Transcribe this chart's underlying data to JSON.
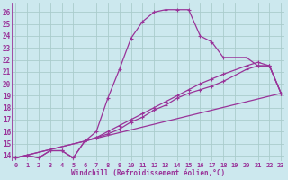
{
  "xlabel": "Windchill (Refroidissement éolien,°C)",
  "bg_color": "#cce8ee",
  "grid_color": "#aacccc",
  "line_color": "#993399",
  "ylim": [
    13.5,
    26.8
  ],
  "xlim": [
    -0.3,
    23.3
  ],
  "yticks": [
    14,
    15,
    16,
    17,
    18,
    19,
    20,
    21,
    22,
    23,
    24,
    25,
    26
  ],
  "xticks": [
    0,
    1,
    2,
    3,
    4,
    5,
    6,
    7,
    8,
    9,
    10,
    11,
    12,
    13,
    14,
    15,
    16,
    17,
    18,
    19,
    20,
    21,
    22,
    23
  ],
  "line1_x": [
    0,
    1,
    2,
    3,
    4,
    5,
    6,
    7,
    8,
    9,
    10,
    11,
    12,
    13,
    14,
    15,
    16,
    17,
    18,
    20,
    21,
    22,
    23
  ],
  "line1_y": [
    13.8,
    14.0,
    13.8,
    14.4,
    14.4,
    13.8,
    15.2,
    16.0,
    18.8,
    21.2,
    23.8,
    25.2,
    26.0,
    26.2,
    26.2,
    26.2,
    24.0,
    23.5,
    22.2,
    22.2,
    21.5,
    21.5,
    19.2
  ],
  "line2_x": [
    0,
    1,
    2,
    3,
    4,
    5,
    6,
    7,
    8,
    9,
    10,
    11,
    12,
    13,
    14,
    15,
    16,
    17,
    18,
    20,
    21,
    22,
    23
  ],
  "line2_y": [
    13.8,
    14.0,
    13.8,
    14.4,
    14.4,
    13.8,
    15.2,
    15.5,
    15.8,
    16.2,
    16.8,
    17.2,
    17.8,
    18.2,
    18.8,
    19.2,
    19.5,
    19.8,
    20.2,
    21.2,
    21.5,
    21.5,
    19.2
  ],
  "line3_x": [
    0,
    6,
    7,
    8,
    9,
    10,
    11,
    12,
    13,
    14,
    15,
    16,
    17,
    18,
    20,
    21,
    22,
    23
  ],
  "line3_y": [
    13.8,
    15.2,
    15.5,
    16.0,
    16.5,
    17.0,
    17.5,
    18.0,
    18.5,
    19.0,
    19.5,
    20.0,
    20.4,
    20.8,
    21.5,
    21.8,
    21.5,
    19.2
  ],
  "line4_x": [
    0,
    6,
    23
  ],
  "line4_y": [
    13.8,
    15.2,
    19.2
  ]
}
